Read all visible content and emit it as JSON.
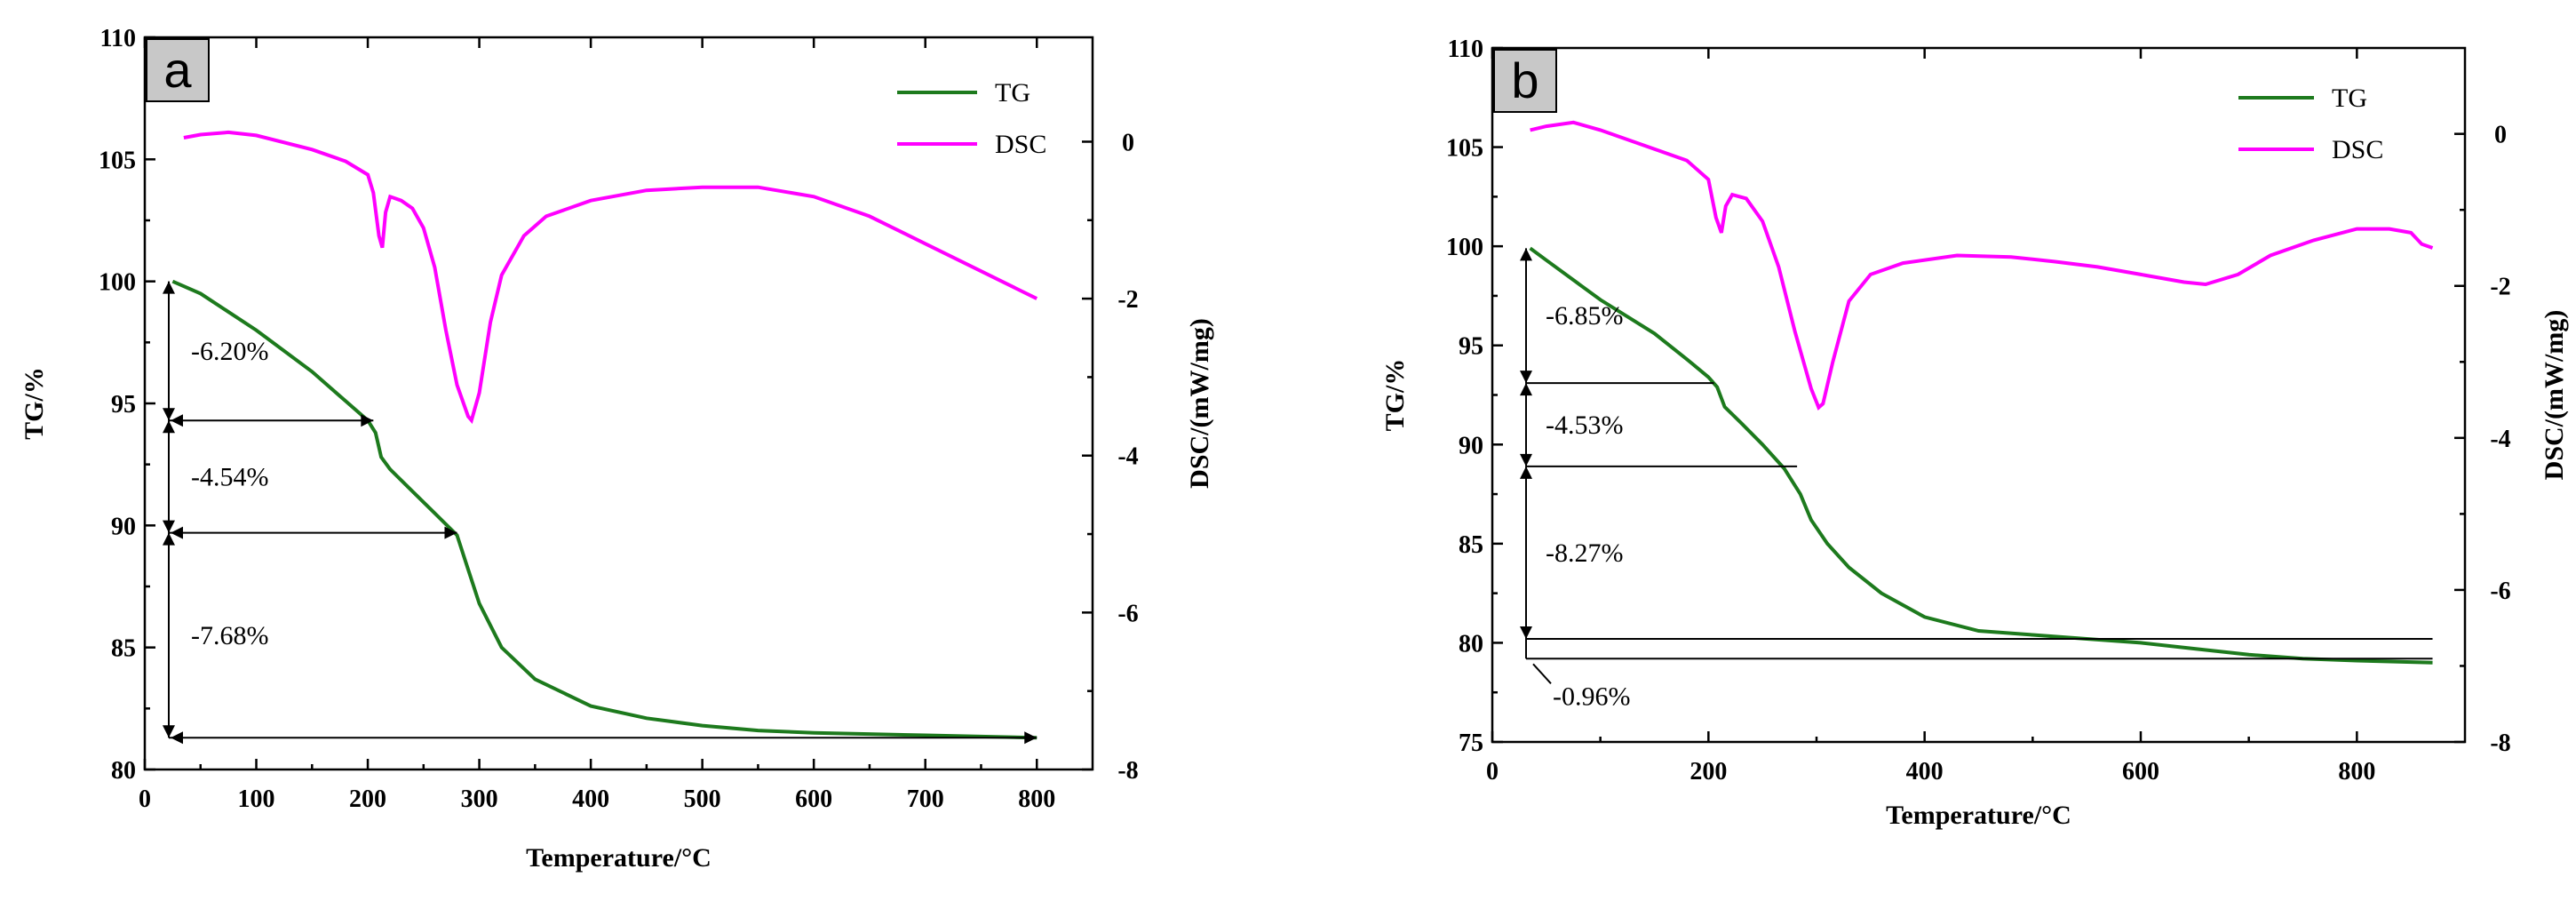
{
  "colors": {
    "tg": "#1d7a1d",
    "dsc": "#ff00ff",
    "panel_label_bg": "#c8c8c8"
  },
  "chart_data": [
    {
      "type": "line",
      "panel": "a",
      "xlabel": "Temperature/°C",
      "ylabel": "TG/%",
      "y2label": "DSC/(mW/mg)",
      "xlim": [
        0,
        850
      ],
      "ylim": [
        80,
        110
      ],
      "y2lim": [
        -8,
        1.33
      ],
      "xticks": [
        0,
        100,
        200,
        300,
        400,
        500,
        600,
        700,
        800
      ],
      "yticks": [
        80,
        85,
        90,
        95,
        100,
        105,
        110
      ],
      "y2ticks": [
        0,
        -2,
        -4,
        -6,
        -8
      ],
      "legend": [
        "TG",
        "DSC"
      ],
      "series": [
        {
          "name": "TG",
          "axis": "left",
          "x": [
            25,
            50,
            100,
            150,
            180,
            200,
            207,
            212,
            220,
            240,
            260,
            280,
            290,
            300,
            320,
            350,
            400,
            450,
            500,
            550,
            600,
            700,
            800
          ],
          "y": [
            100.0,
            99.5,
            98.0,
            96.3,
            95.1,
            94.3,
            93.8,
            92.8,
            92.3,
            91.4,
            90.5,
            89.6,
            88.2,
            86.8,
            85.0,
            83.7,
            82.6,
            82.1,
            81.8,
            81.6,
            81.5,
            81.4,
            81.3
          ]
        },
        {
          "name": "DSC",
          "axis": "right",
          "x": [
            35,
            50,
            75,
            100,
            150,
            180,
            200,
            205,
            210,
            213,
            216,
            220,
            230,
            240,
            250,
            260,
            270,
            280,
            290,
            293,
            300,
            310,
            320,
            340,
            360,
            400,
            450,
            500,
            550,
            600,
            650,
            700,
            750,
            800
          ],
          "y": [
            0.05,
            0.09,
            0.12,
            0.08,
            -0.1,
            -0.25,
            -0.42,
            -0.65,
            -1.2,
            -1.35,
            -0.9,
            -0.7,
            -0.75,
            -0.85,
            -1.1,
            -1.6,
            -2.4,
            -3.1,
            -3.5,
            -3.55,
            -3.2,
            -2.3,
            -1.7,
            -1.2,
            -0.95,
            -0.75,
            -0.62,
            -0.58,
            -0.58,
            -0.7,
            -0.95,
            -1.3,
            -1.65,
            -2.0
          ]
        }
      ],
      "annotations": [
        {
          "label": "-6.20%",
          "t_end": 205,
          "tg_top": 100.0,
          "tg_bottom": 94.3
        },
        {
          "label": "-4.54%",
          "t_end": 280,
          "tg_top": 94.3,
          "tg_bottom": 89.7
        },
        {
          "label": "-7.68%",
          "t_end": 800,
          "tg_top": 89.7,
          "tg_bottom": 81.3
        }
      ]
    },
    {
      "type": "line",
      "panel": "b",
      "xlabel": "Temperature/°C",
      "ylabel": "TG/%",
      "y2label": "DSC/(mW/mg)",
      "xlim": [
        0,
        900
      ],
      "ylim": [
        75,
        110
      ],
      "y2lim": [
        -8,
        1.13
      ],
      "xticks": [
        0,
        200,
        400,
        600,
        800
      ],
      "yticks": [
        75,
        80,
        85,
        90,
        95,
        100,
        105,
        110
      ],
      "y2ticks": [
        0,
        -2,
        -4,
        -6,
        -8
      ],
      "legend": [
        "TG",
        "DSC"
      ],
      "series": [
        {
          "name": "TG",
          "axis": "left",
          "x": [
            35,
            50,
            100,
            150,
            180,
            200,
            208,
            215,
            230,
            250,
            270,
            285,
            295,
            310,
            330,
            360,
            400,
            450,
            500,
            550,
            600,
            650,
            700,
            750,
            800,
            870
          ],
          "y": [
            99.9,
            99.3,
            97.3,
            95.6,
            94.3,
            93.4,
            92.9,
            91.9,
            91.1,
            90.0,
            88.8,
            87.5,
            86.2,
            85.0,
            83.8,
            82.5,
            81.3,
            80.6,
            80.4,
            80.2,
            80.0,
            79.7,
            79.4,
            79.2,
            79.1,
            79.0
          ]
        },
        {
          "name": "DSC",
          "axis": "right",
          "x": [
            35,
            50,
            75,
            100,
            150,
            180,
            200,
            207,
            212,
            216,
            222,
            235,
            250,
            265,
            280,
            295,
            302,
            306,
            315,
            330,
            350,
            380,
            430,
            480,
            520,
            560,
            600,
            640,
            660,
            690,
            720,
            760,
            800,
            830,
            850,
            860,
            870
          ],
          "y": [
            0.05,
            0.1,
            0.15,
            0.05,
            -0.2,
            -0.35,
            -0.6,
            -1.1,
            -1.3,
            -0.95,
            -0.8,
            -0.85,
            -1.15,
            -1.75,
            -2.6,
            -3.35,
            -3.6,
            -3.55,
            -3.0,
            -2.2,
            -1.85,
            -1.7,
            -1.6,
            -1.62,
            -1.68,
            -1.75,
            -1.85,
            -1.95,
            -1.98,
            -1.85,
            -1.6,
            -1.4,
            -1.25,
            -1.25,
            -1.3,
            -1.45,
            -1.5
          ]
        }
      ],
      "annotations": [
        {
          "label": "-6.85%",
          "t_end": 205,
          "tg_top": 99.9,
          "tg_bottom": 93.1
        },
        {
          "label": "-4.53%",
          "t_end": 282,
          "tg_top": 93.1,
          "tg_bottom": 88.9
        },
        {
          "label": "-8.27%",
          "t_end": 870,
          "tg_top": 88.9,
          "tg_bottom": 80.2
        },
        {
          "label": "-0.96%",
          "t_end": 870,
          "tg_top": 80.2,
          "tg_bottom": 79.2
        }
      ]
    }
  ]
}
